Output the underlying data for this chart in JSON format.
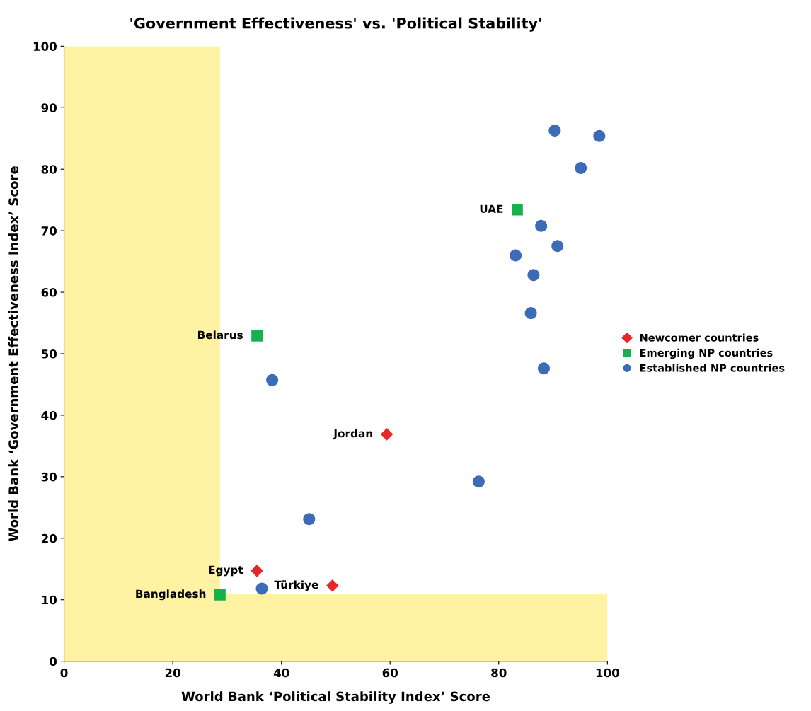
{
  "chart_data": {
    "type": "scatter",
    "title": "'Government Effectiveness' vs. 'Political Stability'",
    "xlabel": "World Bank ‘Political Stability Index’ Score",
    "ylabel": "World Bank ‘Government Effectiveness Index’ Score",
    "xlim": [
      0,
      100
    ],
    "ylim": [
      0,
      100
    ],
    "xticks": [
      0,
      20,
      40,
      60,
      80,
      100
    ],
    "yticks": [
      0,
      10,
      20,
      30,
      40,
      50,
      60,
      70,
      80,
      90,
      100
    ],
    "grid": false,
    "legend": "right",
    "bands": [
      {
        "axis": "x",
        "from": 0,
        "to": 28.7,
        "color": "#fff3a3"
      },
      {
        "axis": "y",
        "from": 0,
        "to": 10.9,
        "color": "#fff3a3"
      }
    ],
    "series": [
      {
        "name": "Newcomer countries",
        "color": "#e8262a",
        "marker": "diamond",
        "x": [
          59.4,
          35.5,
          49.4
        ],
        "values": [
          36.9,
          14.7,
          12.3
        ]
      },
      {
        "name": "Emerging NP countries",
        "color": "#16b04c",
        "marker": "square",
        "x": [
          83.4,
          35.5,
          28.7
        ],
        "values": [
          73.4,
          52.9,
          10.8
        ]
      },
      {
        "name": "Established NP countries",
        "color": "#3c6bb8",
        "marker": "circle",
        "x": [
          90.3,
          98.5,
          95.1,
          87.8,
          90.8,
          83.1,
          86.4,
          85.9,
          88.3,
          38.3,
          76.3,
          45.1,
          36.4
        ],
        "values": [
          86.3,
          85.4,
          80.2,
          70.8,
          67.5,
          66.0,
          62.8,
          56.6,
          47.6,
          45.7,
          29.2,
          23.1,
          11.8
        ]
      }
    ],
    "annotations": [
      {
        "text": "UAE",
        "x": 83.4,
        "y": 73.4
      },
      {
        "text": "Belarus",
        "x": 35.5,
        "y": 52.9
      },
      {
        "text": "Jordan",
        "x": 59.4,
        "y": 36.9
      },
      {
        "text": "Egypt",
        "x": 35.5,
        "y": 14.7
      },
      {
        "text": "Türkiye",
        "x": 49.4,
        "y": 12.3
      },
      {
        "text": "Bangladesh",
        "x": 28.7,
        "y": 10.8
      }
    ]
  }
}
